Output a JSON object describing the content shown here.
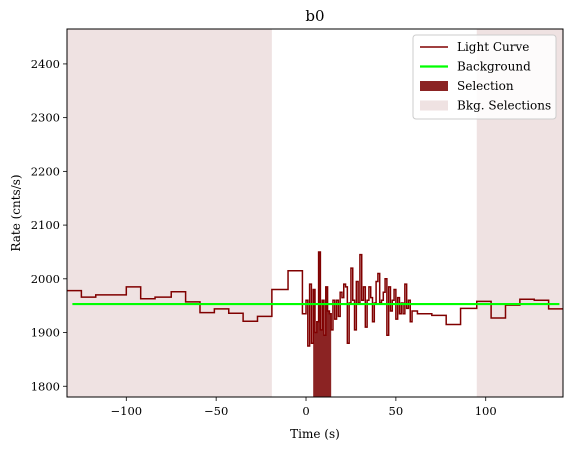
{
  "chart_data": {
    "type": "line",
    "title": "b0",
    "xlabel": "Time (s)",
    "ylabel": "Rate (cnts/s)",
    "xlim": [
      -133,
      143
    ],
    "ylim": [
      1780,
      2465
    ],
    "xticks": [
      -100,
      -50,
      0,
      50,
      100
    ],
    "xtick_labels": [
      "−100",
      "−50",
      "0",
      "50",
      "100"
    ],
    "yticks": [
      1800,
      1900,
      2000,
      2100,
      2200,
      2300,
      2400
    ],
    "ytick_labels": [
      "1800",
      "1900",
      "2000",
      "2100",
      "2200",
      "2300",
      "2400"
    ],
    "legend_position": "top-right",
    "legend": [
      {
        "label": "Light Curve",
        "kind": "line",
        "color": "#800000"
      },
      {
        "label": "Background",
        "kind": "line",
        "color": "#00ff00"
      },
      {
        "label": "Selection",
        "kind": "patch",
        "color": "#8b2323"
      },
      {
        "label": "Bkg. Selections",
        "kind": "patch",
        "color": "#efe2e2"
      }
    ],
    "colors": {
      "light_curve": "#800000",
      "background": "#00ff00",
      "selection": "#8b2323",
      "bkg_selection": "#efe2e2"
    },
    "background_level": 1953,
    "background_range": [
      -130,
      141
    ],
    "bkg_selections": [
      [
        -133,
        -19
      ],
      [
        95,
        143
      ]
    ],
    "selection_range": [
      4,
      14
    ],
    "light_curve": {
      "edges": [
        -133,
        -125,
        -117,
        -100,
        -92,
        -84,
        -75,
        -67,
        -59,
        -51,
        -43,
        -35,
        -27,
        -19,
        -10,
        -2,
        0,
        1,
        2,
        3,
        4,
        5,
        6,
        7,
        8,
        9,
        10,
        11,
        12,
        13,
        14,
        15,
        16,
        17,
        18,
        19,
        20,
        21,
        22,
        23,
        24,
        25,
        26,
        27,
        28,
        29,
        30,
        31,
        32,
        33,
        34,
        35,
        36,
        37,
        38,
        39,
        40,
        41,
        42,
        43,
        44,
        45,
        46,
        47,
        48,
        49,
        50,
        51,
        52,
        53,
        54,
        55,
        56,
        57,
        58,
        59,
        62,
        70,
        78,
        86,
        95,
        103,
        111,
        119,
        127,
        135,
        143
      ],
      "values": [
        1978,
        1966,
        1970,
        1985,
        1963,
        1966,
        1976,
        1957,
        1937,
        1944,
        1936,
        1921,
        1930,
        1980,
        2015,
        1935,
        1960,
        1875,
        1990,
        1880,
        1980,
        1900,
        1920,
        2050,
        1905,
        1960,
        1895,
        1985,
        1940,
        1935,
        1905,
        1960,
        1925,
        1960,
        1930,
        1975,
        1965,
        1990,
        1985,
        1880,
        1955,
        2020,
        1960,
        1905,
        1995,
        1955,
        2045,
        1960,
        1985,
        1910,
        1960,
        1985,
        1965,
        1920,
        1955,
        1995,
        2010,
        1955,
        1960,
        1975,
        2000,
        1895,
        1985,
        1940,
        1960,
        1980,
        1925,
        1965,
        1935,
        1955,
        1935,
        1990,
        1945,
        1960,
        1920,
        1940,
        1935,
        1932,
        1915,
        1945,
        1958,
        1927,
        1951,
        1962,
        1960,
        1944
      ]
    }
  }
}
